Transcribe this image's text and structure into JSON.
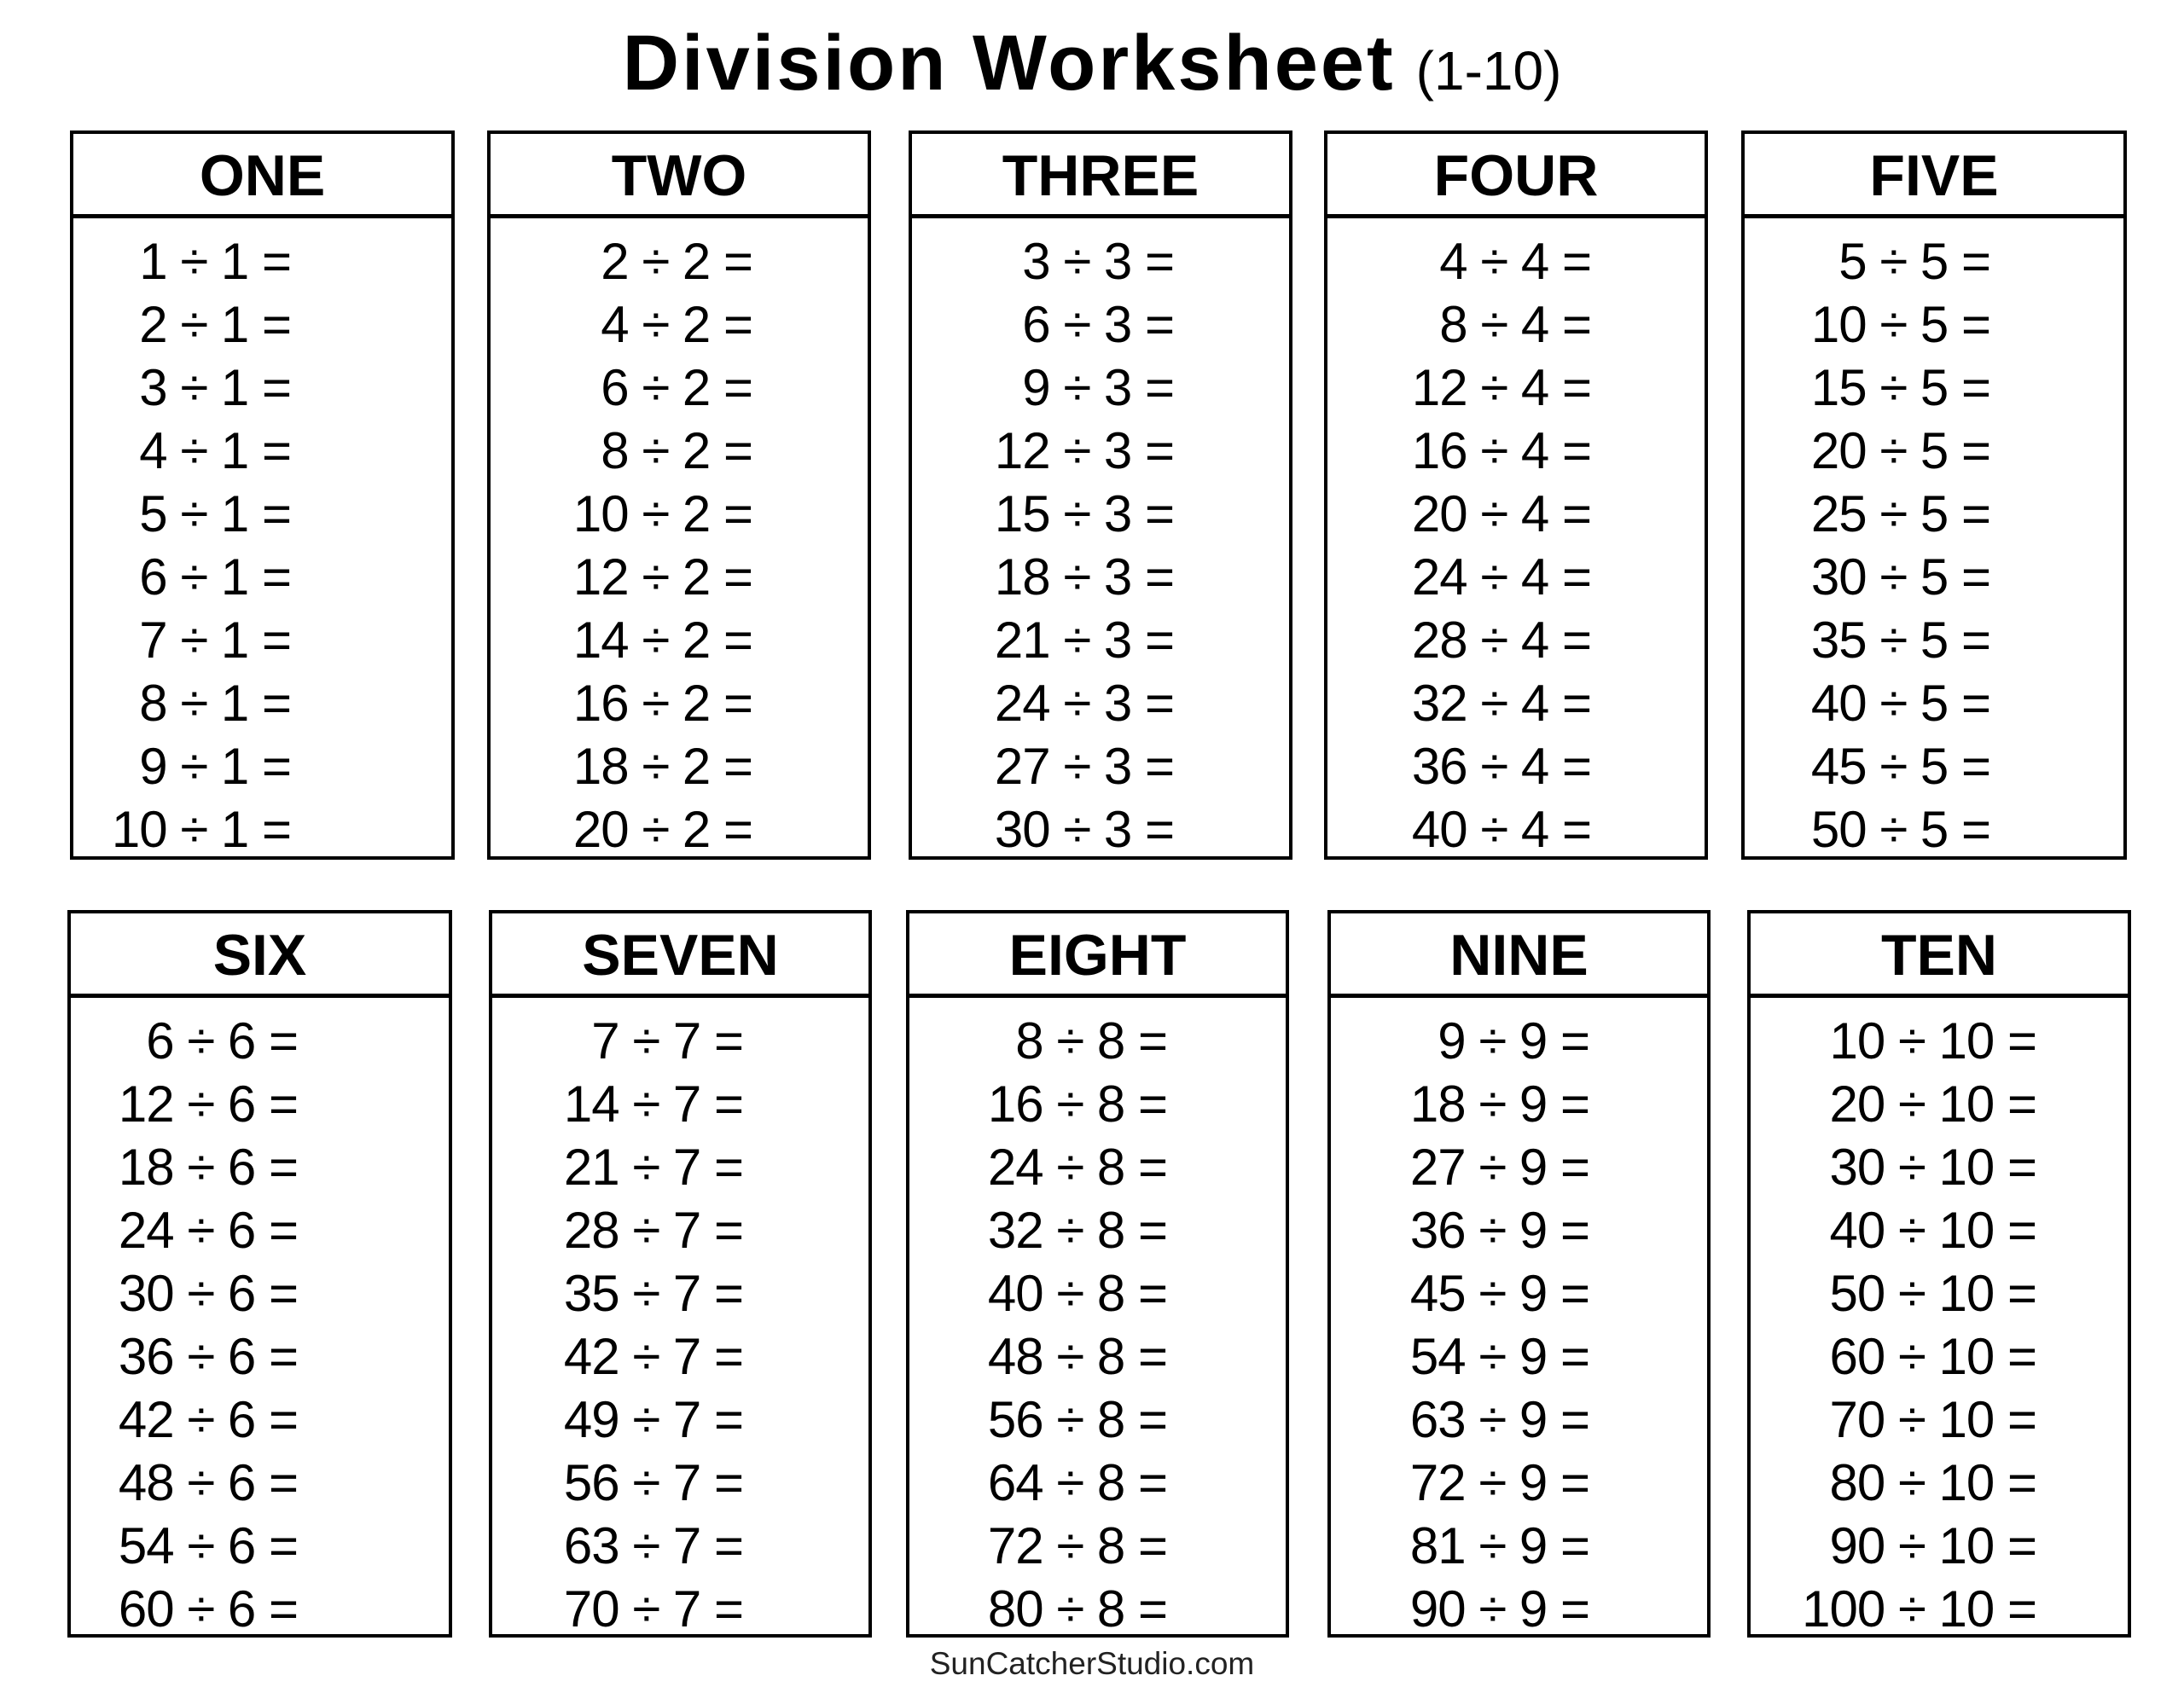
{
  "title": {
    "main": "Division Worksheet",
    "range": "(1-10)"
  },
  "tables": [
    {
      "header": "ONE",
      "problems": [
        "1 ÷ 1 =",
        "2 ÷ 1 =",
        "3 ÷ 1 =",
        "4 ÷ 1 =",
        "5 ÷ 1 =",
        "6 ÷ 1 =",
        "7 ÷ 1 =",
        "8 ÷ 1 =",
        "9 ÷ 1 =",
        "10 ÷ 1 ="
      ]
    },
    {
      "header": "TWO",
      "problems": [
        "2 ÷ 2 =",
        "4 ÷ 2 =",
        "6 ÷ 2 =",
        "8 ÷ 2 =",
        "10 ÷ 2 =",
        "12 ÷ 2 =",
        "14 ÷ 2 =",
        "16 ÷ 2 =",
        "18 ÷ 2 =",
        "20 ÷ 2 ="
      ]
    },
    {
      "header": "THREE",
      "problems": [
        "3 ÷ 3 =",
        "6 ÷ 3 =",
        "9 ÷ 3 =",
        "12 ÷ 3 =",
        "15 ÷ 3 =",
        "18 ÷ 3 =",
        "21 ÷ 3 =",
        "24 ÷ 3 =",
        "27 ÷ 3 =",
        "30 ÷ 3 ="
      ]
    },
    {
      "header": "FOUR",
      "problems": [
        "4 ÷ 4 =",
        "8 ÷ 4 =",
        "12 ÷ 4 =",
        "16 ÷ 4 =",
        "20 ÷ 4 =",
        "24 ÷ 4 =",
        "28 ÷ 4 =",
        "32 ÷ 4 =",
        "36 ÷ 4 =",
        "40 ÷ 4 ="
      ]
    },
    {
      "header": "FIVE",
      "problems": [
        "5 ÷ 5 =",
        "10 ÷ 5 =",
        "15 ÷ 5 =",
        "20 ÷ 5 =",
        "25 ÷ 5 =",
        "30 ÷ 5 =",
        "35 ÷ 5 =",
        "40 ÷ 5 =",
        "45 ÷ 5 =",
        "50 ÷ 5 ="
      ]
    },
    {
      "header": "SIX",
      "problems": [
        "6 ÷ 6 =",
        "12 ÷ 6 =",
        "18 ÷ 6 =",
        "24 ÷ 6 =",
        "30 ÷ 6 =",
        "36 ÷ 6 =",
        "42 ÷ 6 =",
        "48 ÷ 6 =",
        "54 ÷ 6 =",
        "60 ÷ 6 ="
      ]
    },
    {
      "header": "SEVEN",
      "problems": [
        "7 ÷ 7 =",
        "14 ÷ 7 =",
        "21 ÷ 7 =",
        "28 ÷ 7 =",
        "35 ÷ 7 =",
        "42 ÷ 7 =",
        "49 ÷ 7 =",
        "56 ÷ 7 =",
        "63 ÷ 7 =",
        "70 ÷ 7 ="
      ]
    },
    {
      "header": "EIGHT",
      "problems": [
        "8 ÷ 8 =",
        "16 ÷ 8 =",
        "24 ÷ 8 =",
        "32 ÷ 8 =",
        "40 ÷ 8 =",
        "48 ÷ 8 =",
        "56 ÷ 8 =",
        "64 ÷ 8 =",
        "72 ÷ 8 =",
        "80 ÷ 8 ="
      ]
    },
    {
      "header": "NINE",
      "problems": [
        "9 ÷ 9 =",
        "18 ÷ 9 =",
        "27 ÷ 9 =",
        "36 ÷ 9 =",
        "45 ÷ 9 =",
        "54 ÷ 9 =",
        "63 ÷ 9 =",
        "72 ÷ 9 =",
        "81 ÷ 9 =",
        "90 ÷ 9 ="
      ]
    },
    {
      "header": "TEN",
      "problems": [
        "10 ÷ 10 =",
        "20 ÷ 10 =",
        "30 ÷ 10 =",
        "40 ÷ 10 =",
        "50 ÷ 10 =",
        "60 ÷ 10 =",
        "70 ÷ 10 =",
        "80 ÷ 10 =",
        "90 ÷ 10 =",
        "100 ÷ 10 ="
      ]
    }
  ],
  "footer": "SunCatcherStudio.com"
}
